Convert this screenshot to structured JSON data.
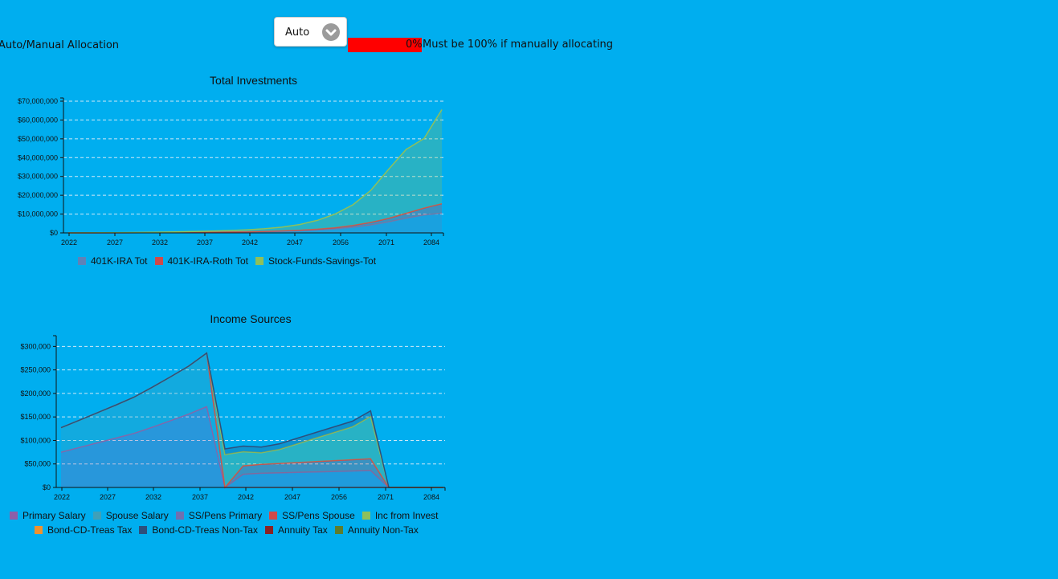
{
  "allocation": {
    "label": "Auto/Manual Allocation",
    "dropdown_value": "Auto",
    "percent_text": "0%",
    "note": "Must be 100% if manually allocating"
  },
  "chart_data": [
    {
      "type": "area",
      "title": "Total Investments",
      "x_ticks": [
        "2022",
        "2027",
        "2032",
        "2037",
        "2042",
        "2047",
        "2056",
        "2071",
        "2084"
      ],
      "y_ticks": [
        "$0",
        "$10,000,000",
        "$20,000,000",
        "$30,000,000",
        "$40,000,000",
        "$50,000,000",
        "$60,000,000",
        "$70,000,000"
      ],
      "ylim": [
        0,
        70000000
      ],
      "grid": true,
      "legend_position": "bottom",
      "series": [
        {
          "name": "401K-IRA Tot",
          "color": "#5f82b8",
          "values": [
            0,
            5000,
            20000,
            50000,
            80000,
            120000,
            170000,
            230000,
            300000,
            380000,
            480000,
            620000,
            820000,
            1100000,
            1500000,
            2100000,
            3000000,
            4200000,
            5800000,
            7800000,
            9500000,
            10500000
          ]
        },
        {
          "name": "401K-IRA-Roth Tot",
          "color": "#d04a4a",
          "values": [
            0,
            2000,
            6000,
            12000,
            20000,
            30000,
            42000,
            57000,
            76000,
            100000,
            130000,
            170000,
            230000,
            320000,
            450000,
            650000,
            950000,
            1350000,
            1900000,
            2600000,
            3700000,
            5000000
          ]
        },
        {
          "name": "Stock-Funds-Savings-Tot",
          "color": "#8fc05a",
          "values": [
            0,
            20000,
            60000,
            100000,
            160000,
            230000,
            320000,
            430000,
            570000,
            750000,
            1000000,
            1400000,
            2000000,
            3000000,
            4700000,
            7300000,
            11000000,
            17000000,
            26000000,
            34000000,
            37000000,
            50000000
          ]
        }
      ]
    },
    {
      "type": "area",
      "title": "Income Sources",
      "x_ticks": [
        "2022",
        "2027",
        "2032",
        "2037",
        "2042",
        "2047",
        "2056",
        "2071",
        "2084"
      ],
      "y_ticks": [
        "$0",
        "$50,000",
        "$100,000",
        "$150,000",
        "$200,000",
        "$250,000",
        "$300,000"
      ],
      "ylim": [
        0,
        316000
      ],
      "grid": true,
      "legend_position": "bottom",
      "series": [
        {
          "name": "Primary Salary",
          "color": "#8e5fa8",
          "values": [
            75000,
            85000,
            95000,
            105000,
            115000,
            128000,
            142000,
            156000,
            172000,
            0,
            0,
            0,
            0,
            0,
            0,
            0,
            0,
            0,
            0,
            0,
            0,
            0
          ]
        },
        {
          "name": "Spouse Salary",
          "color": "#3fa0b8",
          "values": [
            52000,
            58000,
            64000,
            70000,
            77000,
            85000,
            93000,
            102000,
            114000,
            0,
            0,
            0,
            0,
            0,
            0,
            0,
            0,
            0,
            0,
            0,
            0,
            0
          ]
        },
        {
          "name": "SS/Pens Primary",
          "color": "#7070b0",
          "values": [
            0,
            0,
            0,
            0,
            0,
            0,
            0,
            0,
            0,
            0,
            28000,
            30000,
            31000,
            32000,
            33000,
            34000,
            35000,
            36000,
            0,
            0,
            0,
            0
          ]
        },
        {
          "name": "SS/Pens Spouse",
          "color": "#d04a4a",
          "values": [
            0,
            0,
            0,
            0,
            0,
            0,
            0,
            0,
            0,
            0,
            18000,
            19000,
            20000,
            21000,
            22000,
            23000,
            24000,
            25000,
            0,
            0,
            0,
            0
          ]
        },
        {
          "name": "Inc from Invest",
          "color": "#8fc05a",
          "values": [
            0,
            0,
            0,
            0,
            0,
            0,
            0,
            0,
            0,
            70000,
            30000,
            25000,
            30000,
            40000,
            50000,
            60000,
            70000,
            90000,
            0,
            0,
            0,
            0
          ]
        },
        {
          "name": "Bond-CD-Treas Tax",
          "color": "#f0922e",
          "values": [
            0,
            0,
            0,
            0,
            0,
            0,
            0,
            0,
            0,
            0,
            0,
            0,
            0,
            0,
            0,
            0,
            0,
            0,
            0,
            0,
            0,
            0
          ]
        },
        {
          "name": "Bond-CD-Treas Non-Tax",
          "color": "#2d4f7c",
          "values": [
            0,
            0,
            0,
            0,
            0,
            0,
            0,
            0,
            0,
            12000,
            12000,
            12000,
            12000,
            12000,
            12000,
            12000,
            12000,
            12000,
            0,
            0,
            0,
            0
          ]
        },
        {
          "name": "Annuity Tax",
          "color": "#8b2323",
          "values": [
            0,
            0,
            0,
            0,
            0,
            0,
            0,
            0,
            0,
            0,
            0,
            0,
            0,
            0,
            0,
            0,
            0,
            0,
            0,
            0,
            0,
            0
          ]
        },
        {
          "name": "Annuity Non-Tax",
          "color": "#5e7d2e",
          "values": [
            0,
            0,
            0,
            0,
            0,
            0,
            0,
            0,
            0,
            0,
            0,
            0,
            0,
            0,
            0,
            0,
            0,
            0,
            0,
            0,
            0,
            0
          ]
        }
      ]
    }
  ]
}
